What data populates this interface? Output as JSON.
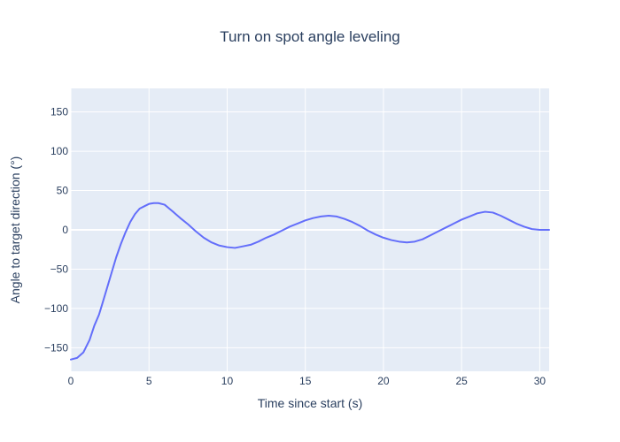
{
  "chart_data": {
    "type": "line",
    "title": "Turn on spot angle leveling",
    "xlabel": "Time since start (s)",
    "ylabel": "Angle to target direction (°)",
    "xlim": [
      0,
      30.6
    ],
    "ylim": [
      -180,
      180
    ],
    "x_ticks": [
      0,
      5,
      10,
      15,
      20,
      25,
      30
    ],
    "y_ticks": [
      -150,
      -100,
      -50,
      0,
      50,
      100,
      150
    ],
    "grid": true,
    "legend": "none",
    "colors": {
      "line": "#636efa",
      "plot_bg": "#e5ecf6",
      "grid": "#ffffff",
      "text": "#2a3f5f"
    },
    "series": [
      {
        "x": [
          0,
          0.4,
          0.8,
          1.0,
          1.2,
          1.5,
          1.8,
          2.0,
          2.3,
          2.6,
          2.9,
          3.2,
          3.5,
          3.8,
          4.1,
          4.4,
          4.7,
          5.0,
          5.3,
          5.6,
          6.0,
          6.3,
          6.6,
          7.0,
          7.5,
          8.0,
          8.5,
          9.0,
          9.5,
          10.0,
          10.5,
          11.0,
          11.5,
          12.0,
          12.5,
          13.0,
          13.5,
          14.0,
          14.5,
          15.0,
          15.5,
          16.0,
          16.5,
          17.0,
          17.5,
          18.0,
          18.5,
          19.0,
          19.5,
          20.0,
          20.5,
          21.0,
          21.5,
          22.0,
          22.5,
          23.0,
          23.5,
          24.0,
          24.5,
          25.0,
          25.5,
          26.0,
          26.5,
          27.0,
          27.5,
          28.0,
          28.5,
          29.0,
          29.5,
          30.0,
          30.6
        ],
        "y": [
          -165,
          -163,
          -156,
          -148,
          -140,
          -122,
          -108,
          -95,
          -75,
          -55,
          -35,
          -18,
          -3,
          10,
          20,
          27,
          30,
          33,
          34,
          34,
          32,
          27,
          22,
          15,
          7,
          -2,
          -10,
          -16,
          -20,
          -22,
          -23,
          -21,
          -19,
          -15,
          -10,
          -6,
          -1,
          4,
          8,
          12,
          15,
          17,
          18,
          17,
          14,
          10,
          5,
          -1,
          -6,
          -10,
          -13,
          -15,
          -16,
          -15,
          -12,
          -7,
          -2,
          3,
          8,
          13,
          17,
          21,
          23,
          22,
          18,
          13,
          8,
          4,
          1,
          0,
          0
        ]
      }
    ]
  }
}
